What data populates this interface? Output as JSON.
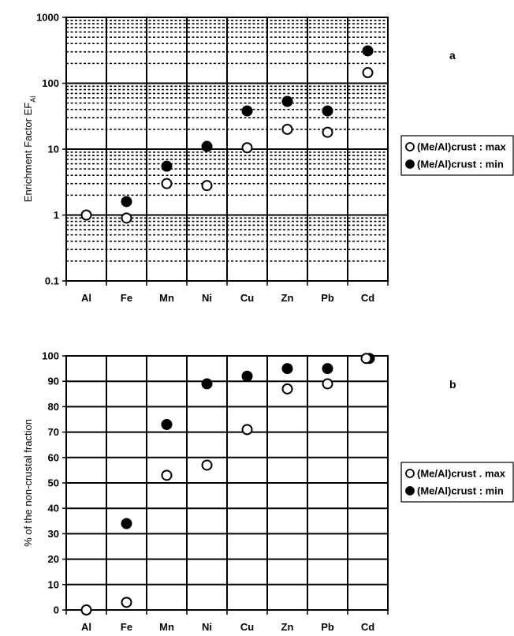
{
  "chart_data": [
    {
      "type": "scatter",
      "panel_label": "a",
      "ylabel_main": "Enrichment Factor EF",
      "ylabel_sub": "Al",
      "yscale": "log",
      "ylim": [
        0.1,
        1000
      ],
      "yticks": [
        "1000",
        "100",
        "10",
        "1",
        "0.1"
      ],
      "grid": true,
      "legend_position": "right",
      "categories": [
        "Al",
        "Fe",
        "Mn",
        "Ni",
        "Cu",
        "Zn",
        "Pb",
        "Cd"
      ],
      "series": [
        {
          "name": "(Me/Al)crust : max",
          "marker": "open-circle",
          "values": [
            1.0,
            0.9,
            3.0,
            2.8,
            10.5,
            20,
            18,
            145
          ]
        },
        {
          "name": "(Me/Al)crust : min",
          "marker": "filled-circle",
          "values": [
            null,
            1.6,
            5.5,
            11,
            38,
            53,
            38,
            310
          ]
        }
      ]
    },
    {
      "type": "scatter",
      "panel_label": "b",
      "ylabel": "% of the non-crustal fraction",
      "yscale": "linear",
      "ylim": [
        0,
        100
      ],
      "yticks": [
        "100",
        "90",
        "80",
        "70",
        "60",
        "50",
        "40",
        "30",
        "20",
        "10",
        "0"
      ],
      "grid": true,
      "legend_position": "right",
      "categories": [
        "Al",
        "Fe",
        "Mn",
        "Ni",
        "Cu",
        "Zn",
        "Pb",
        "Cd"
      ],
      "series": [
        {
          "name": "(Me/Al)crust . max",
          "marker": "open-circle",
          "values": [
            0,
            3,
            53,
            57,
            71,
            87,
            89,
            99
          ]
        },
        {
          "name": "(Me/Al)crust : min",
          "marker": "filled-circle",
          "values": [
            null,
            34,
            73,
            89,
            92,
            95,
            95,
            99
          ]
        }
      ]
    }
  ]
}
